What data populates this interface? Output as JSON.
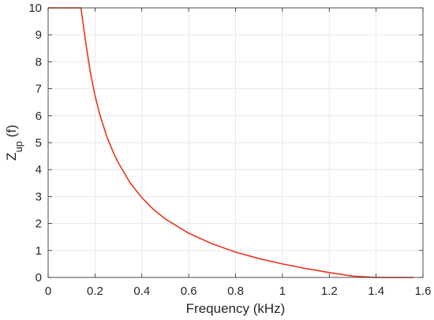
{
  "chart_data": {
    "type": "line",
    "xlabel": "Frequency (kHz)",
    "ylabel": {
      "main": "Z",
      "subscript": "up",
      "suffix": " (f)"
    },
    "xlim": [
      0,
      1.6
    ],
    "ylim": [
      0,
      10
    ],
    "x_ticks": [
      "0",
      "0.2",
      "0.4",
      "0.6",
      "0.8",
      "1",
      "1.2",
      "1.4",
      "1.6"
    ],
    "y_ticks": [
      "0",
      "1",
      "2",
      "3",
      "4",
      "5",
      "6",
      "7",
      "8",
      "9",
      "10"
    ],
    "grid": true,
    "series": [
      {
        "color": "#e8361c",
        "x": [
          0,
          0.14,
          0.16,
          0.18,
          0.2,
          0.22,
          0.25,
          0.28,
          0.3,
          0.35,
          0.4,
          0.45,
          0.5,
          0.6,
          0.7,
          0.8,
          0.9,
          1.0,
          1.1,
          1.2,
          1.3,
          1.4,
          1.5,
          1.56
        ],
        "y": [
          10,
          10,
          8.75,
          7.61,
          6.75,
          6.06,
          5.24,
          4.6,
          4.25,
          3.51,
          2.96,
          2.52,
          2.17,
          1.64,
          1.25,
          0.94,
          0.7,
          0.5,
          0.33,
          0.18,
          0.05,
          -0.07,
          -0.17,
          0.0
        ]
      }
    ]
  }
}
